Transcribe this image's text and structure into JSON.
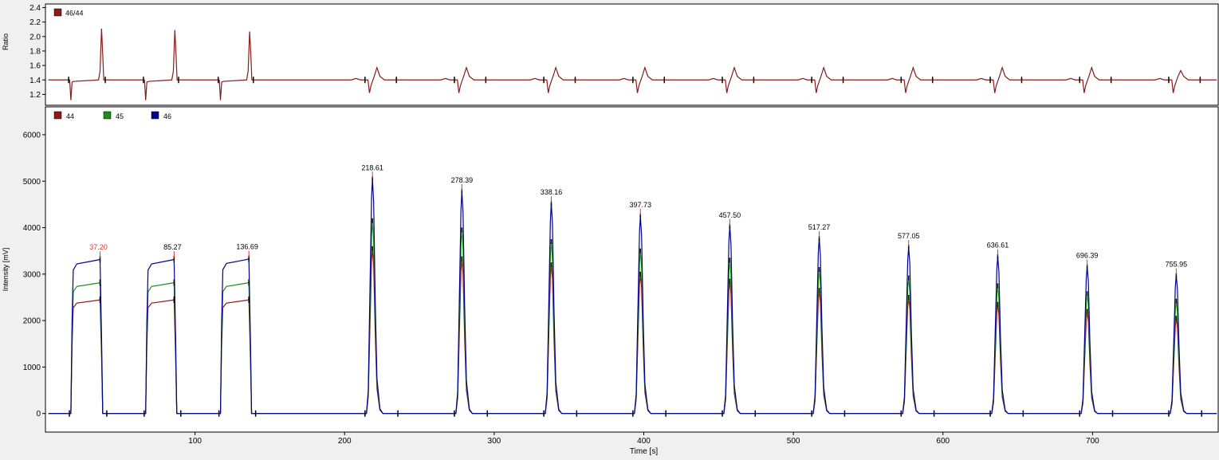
{
  "chart_data": [
    {
      "type": "line",
      "name": "ratio",
      "ylabel": "Ratio",
      "ylim": [
        1.05,
        2.45
      ],
      "yticks": [
        1.2,
        1.4,
        1.6,
        1.8,
        2.0,
        2.2,
        2.4
      ],
      "ytick_labels": [
        "1.2",
        "1.4",
        "1.6",
        "1.8",
        "2.0",
        "2.2",
        "2.4"
      ],
      "xlim": [
        0,
        784
      ],
      "baseline": 1.4,
      "legend": [
        {
          "label": "46/44",
          "color": "#8b1a1a"
        }
      ],
      "pulse_events": [
        {
          "start": 17,
          "end": 37.5,
          "min": 1.12,
          "max": 2.11
        },
        {
          "start": 67,
          "end": 86.5,
          "min": 1.12,
          "max": 2.09
        },
        {
          "start": 117,
          "end": 136.5,
          "min": 1.12,
          "max": 2.07
        }
      ],
      "peak_events": [
        {
          "t": 218.61,
          "min": 1.22,
          "max": 1.57
        },
        {
          "t": 278.39,
          "min": 1.22,
          "max": 1.57
        },
        {
          "t": 338.16,
          "min": 1.22,
          "max": 1.57
        },
        {
          "t": 397.73,
          "min": 1.22,
          "max": 1.57
        },
        {
          "t": 457.5,
          "min": 1.22,
          "max": 1.57
        },
        {
          "t": 517.27,
          "min": 1.22,
          "max": 1.57
        },
        {
          "t": 577.05,
          "min": 1.22,
          "max": 1.57
        },
        {
          "t": 636.61,
          "min": 1.22,
          "max": 1.57
        },
        {
          "t": 696.39,
          "min": 1.22,
          "max": 1.57
        },
        {
          "t": 755.95,
          "min": 1.22,
          "max": 1.53
        }
      ]
    },
    {
      "type": "line",
      "name": "intensity",
      "xlabel": "Time [s]",
      "ylabel": "Intensity [mV]",
      "xlim": [
        0,
        784
      ],
      "ylim": [
        -400,
        6600
      ],
      "xticks": [
        100,
        200,
        300,
        400,
        500,
        600,
        700
      ],
      "xtick_labels": [
        "100",
        "200",
        "300",
        "400",
        "500",
        "600",
        "700"
      ],
      "yticks": [
        0,
        1000,
        2000,
        3000,
        4000,
        5000,
        6000
      ],
      "ytick_labels": [
        "0",
        "1000",
        "2000",
        "3000",
        "4000",
        "5000",
        "6000"
      ],
      "legend": [
        {
          "label": "44",
          "color": "#8b1a1a"
        },
        {
          "label": "45",
          "color": "#1e8c1e"
        },
        {
          "label": "46",
          "color": "#00008b"
        }
      ],
      "reference_pulses": [
        {
          "start": 17,
          "end": 38,
          "label": "37.20",
          "label_color": "#e8302c",
          "levels": {
            "44": 2450,
            "45": 2820,
            "46": 3320
          }
        },
        {
          "start": 67,
          "end": 87.5,
          "label": "85.27",
          "label_color": "#000000",
          "levels": {
            "44": 2450,
            "45": 2820,
            "46": 3320
          }
        },
        {
          "start": 117,
          "end": 137.5,
          "label": "136.69",
          "label_color": "#000000",
          "levels": {
            "44": 2450,
            "45": 2820,
            "46": 3330
          }
        }
      ],
      "peaks": [
        {
          "t": 218.61,
          "label": "218.61",
          "heights": {
            "44": 3550,
            "45": 4150,
            "46": 5050
          }
        },
        {
          "t": 278.39,
          "label": "278.39",
          "heights": {
            "44": 3330,
            "45": 3950,
            "46": 4780
          }
        },
        {
          "t": 338.16,
          "label": "338.16",
          "heights": {
            "44": 3200,
            "45": 3700,
            "46": 4520
          }
        },
        {
          "t": 397.73,
          "label": "397.73",
          "heights": {
            "44": 3000,
            "45": 3500,
            "46": 4250
          }
        },
        {
          "t": 457.5,
          "label": "457.50",
          "heights": {
            "44": 2850,
            "45": 3300,
            "46": 4030
          }
        },
        {
          "t": 517.27,
          "label": "517.27",
          "heights": {
            "44": 2650,
            "45": 3100,
            "46": 3770
          }
        },
        {
          "t": 577.05,
          "label": "577.05",
          "heights": {
            "44": 2500,
            "45": 2920,
            "46": 3580
          }
        },
        {
          "t": 636.61,
          "label": "636.61",
          "heights": {
            "44": 2350,
            "45": 2750,
            "46": 3380
          }
        },
        {
          "t": 696.39,
          "label": "696.39",
          "heights": {
            "44": 2200,
            "45": 2580,
            "46": 3160
          }
        },
        {
          "t": 755.95,
          "label": "755.95",
          "heights": {
            "44": 2050,
            "45": 2420,
            "46": 2970
          }
        }
      ]
    }
  ],
  "colors": {
    "background": "#f0f0f0",
    "plot_background": "#ffffff",
    "axis": "#000000",
    "tick_mark": "#000000",
    "peak_apex_marker": "#e8302c"
  }
}
